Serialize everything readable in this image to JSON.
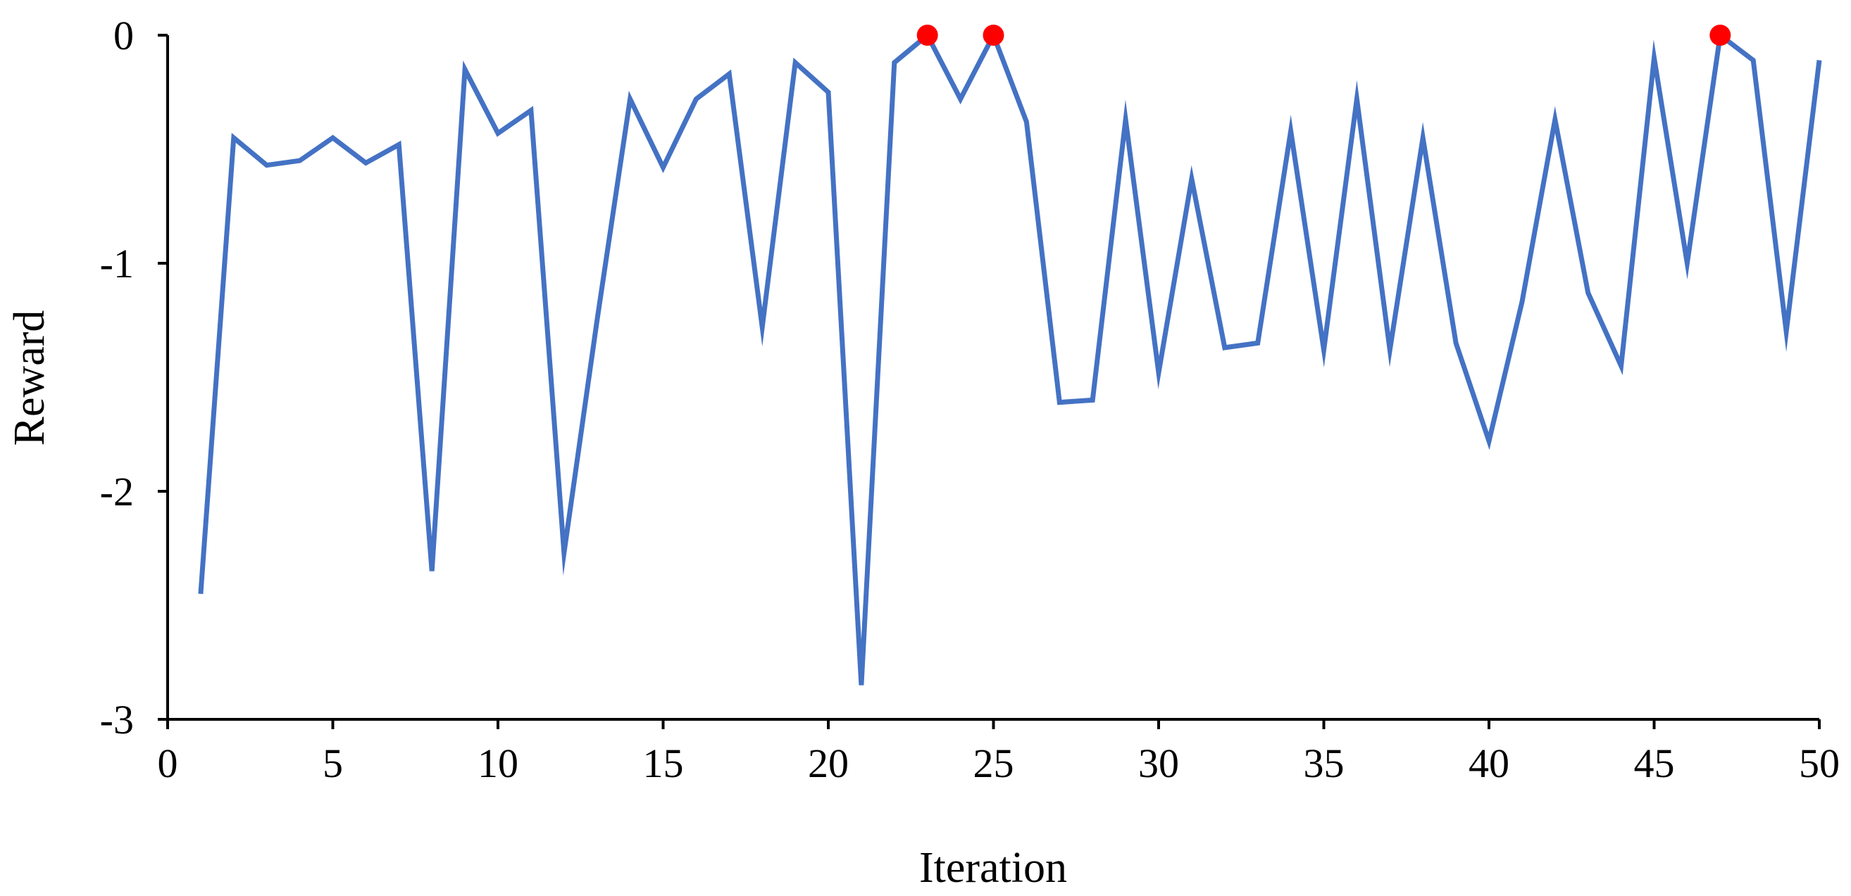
{
  "chart_data": {
    "type": "line",
    "xlabel": "Iteration",
    "ylabel": "Reward",
    "xlim": [
      0,
      50
    ],
    "ylim": [
      -3,
      0
    ],
    "xticks": [
      0,
      5,
      10,
      15,
      20,
      25,
      30,
      35,
      40,
      45,
      50
    ],
    "yticks": [
      0,
      -1,
      -2,
      -3
    ],
    "xtick_labels": [
      "0",
      "5",
      "10",
      "15",
      "20",
      "25",
      "30",
      "35",
      "40",
      "45",
      "50"
    ],
    "ytick_labels": [
      "0",
      "-1",
      "-2",
      "-3"
    ],
    "grid": false,
    "series": [
      {
        "color": "#4472C4",
        "x": [
          1,
          2,
          3,
          4,
          5,
          6,
          7,
          8,
          9,
          10,
          11,
          12,
          13,
          14,
          15,
          16,
          17,
          18,
          19,
          20,
          21,
          22,
          23,
          24,
          25,
          26,
          27,
          28,
          29,
          30,
          31,
          32,
          33,
          34,
          35,
          36,
          37,
          38,
          39,
          40,
          41,
          42,
          43,
          44,
          45,
          46,
          47,
          48,
          49,
          50
        ],
        "y": [
          -2.45,
          -0.45,
          -0.57,
          -0.55,
          -0.45,
          -0.56,
          -0.48,
          -2.35,
          -0.15,
          -0.43,
          -0.33,
          -2.27,
          -1.25,
          -0.28,
          -0.58,
          -0.28,
          -0.17,
          -1.28,
          -0.12,
          -0.25,
          -2.85,
          -0.12,
          0,
          -0.28,
          0,
          -0.38,
          -1.61,
          -1.6,
          -0.37,
          -1.48,
          -0.63,
          -1.37,
          -1.35,
          -0.42,
          -1.38,
          -0.28,
          -1.38,
          -0.45,
          -1.35,
          -1.78,
          -1.17,
          -0.37,
          -1.13,
          -1.45,
          -0.1,
          -1.0,
          0,
          -0.11,
          -1.3,
          -0.11
        ]
      }
    ],
    "highlight_points": {
      "color": "#FF0000",
      "x": [
        23,
        25,
        47
      ],
      "y": [
        0,
        0,
        0
      ]
    }
  }
}
